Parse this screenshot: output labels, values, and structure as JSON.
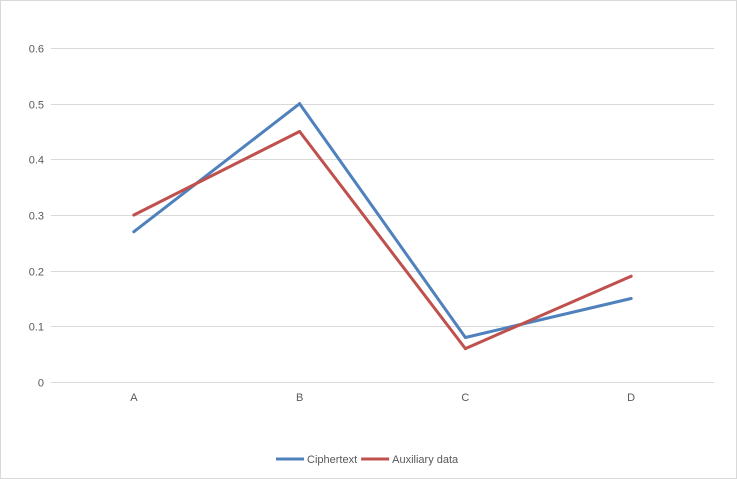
{
  "chart_data": {
    "type": "line",
    "title": "",
    "xlabel": "",
    "ylabel": "",
    "categories": [
      "A",
      "B",
      "C",
      "D"
    ],
    "ylim": [
      0,
      0.6
    ],
    "yticks": [
      "0",
      "0.1",
      "0.2",
      "0.3",
      "0.4",
      "0.5",
      "0.6"
    ],
    "grid": true,
    "legend_position": "bottom",
    "series": [
      {
        "name": "Ciphertext",
        "color": "#4f81bd",
        "values": [
          0.27,
          0.5,
          0.08,
          0.15
        ]
      },
      {
        "name": "Auxiliary data",
        "color": "#c0504d",
        "values": [
          0.3,
          0.45,
          0.06,
          0.19
        ]
      }
    ]
  }
}
